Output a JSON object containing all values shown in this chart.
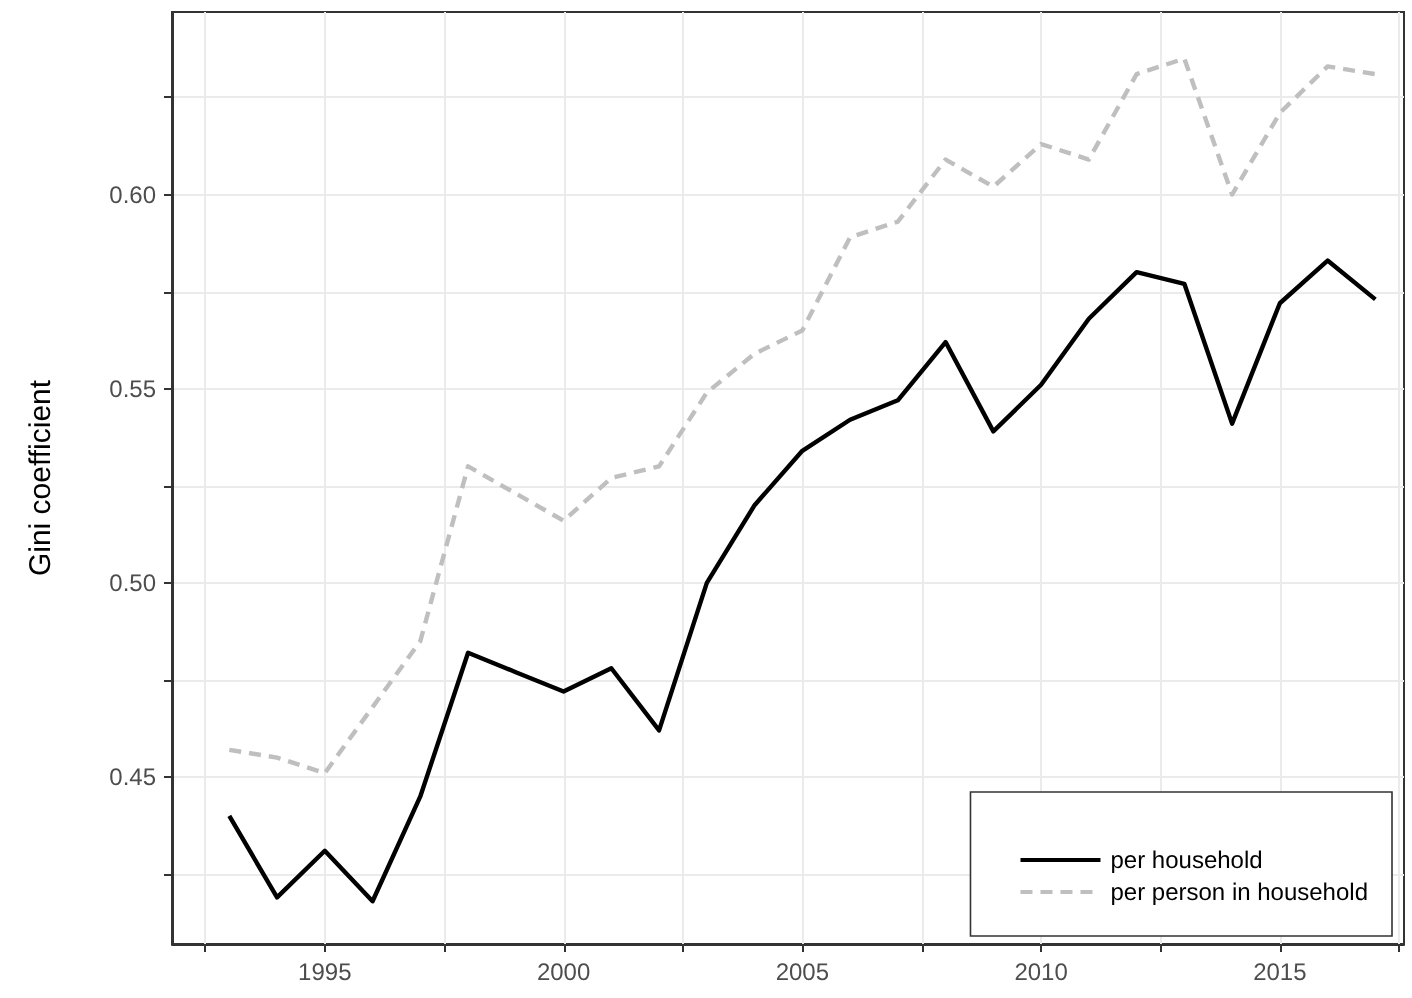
{
  "chart_data": {
    "type": "line",
    "ylabel": "Gini coefficient",
    "x": [
      1993,
      1994,
      1995,
      1996,
      1997,
      1998,
      1999,
      2000,
      2001,
      2002,
      2003,
      2004,
      2005,
      2006,
      2007,
      2008,
      2009,
      2010,
      2011,
      2012,
      2013,
      2014,
      2015,
      2016,
      2017
    ],
    "series": [
      {
        "name": "per household",
        "color": "#000000",
        "line_style": "solid",
        "values": [
          0.44,
          0.419,
          0.431,
          0.418,
          0.445,
          0.482,
          0.477,
          0.472,
          0.478,
          0.462,
          0.5,
          0.52,
          0.534,
          0.542,
          0.547,
          0.562,
          0.539,
          0.551,
          0.568,
          0.58,
          0.577,
          0.541,
          0.572,
          0.583,
          0.573
        ]
      },
      {
        "name": "per person in household",
        "color": "#bfbfbf",
        "line_style": "dashed",
        "values": [
          0.457,
          0.455,
          0.451,
          0.468,
          0.485,
          0.53,
          0.523,
          0.516,
          0.527,
          0.53,
          0.549,
          0.559,
          0.565,
          0.589,
          0.593,
          0.609,
          0.602,
          0.613,
          0.609,
          0.631,
          0.635,
          0.6,
          0.621,
          0.633,
          0.631
        ]
      }
    ],
    "xlim": [
      1991.8,
      2017.6
    ],
    "ylim": [
      0.407,
      0.647
    ],
    "xticks": [
      {
        "value": 1992.5,
        "label": null
      },
      1995,
      {
        "value": 1997.5,
        "label": null
      },
      2000,
      {
        "value": 2002.5,
        "label": null
      },
      2005,
      {
        "value": 2007.5,
        "label": null
      },
      2010,
      {
        "value": 2012.5,
        "label": null
      },
      2015,
      {
        "value": 2017.5,
        "label": null
      }
    ],
    "yticks": [
      {
        "value": 0.425,
        "label": null
      },
      0.45,
      {
        "value": 0.475,
        "label": null
      },
      {
        "value": 0.5,
        "label": "0.50"
      },
      {
        "value": 0.525,
        "label": null
      },
      0.55,
      {
        "value": 0.575,
        "label": null
      },
      {
        "value": 0.6,
        "label": "0.60"
      },
      {
        "value": 0.625,
        "label": null
      }
    ],
    "grid": true,
    "legend": "bottom right",
    "marker": "none"
  }
}
